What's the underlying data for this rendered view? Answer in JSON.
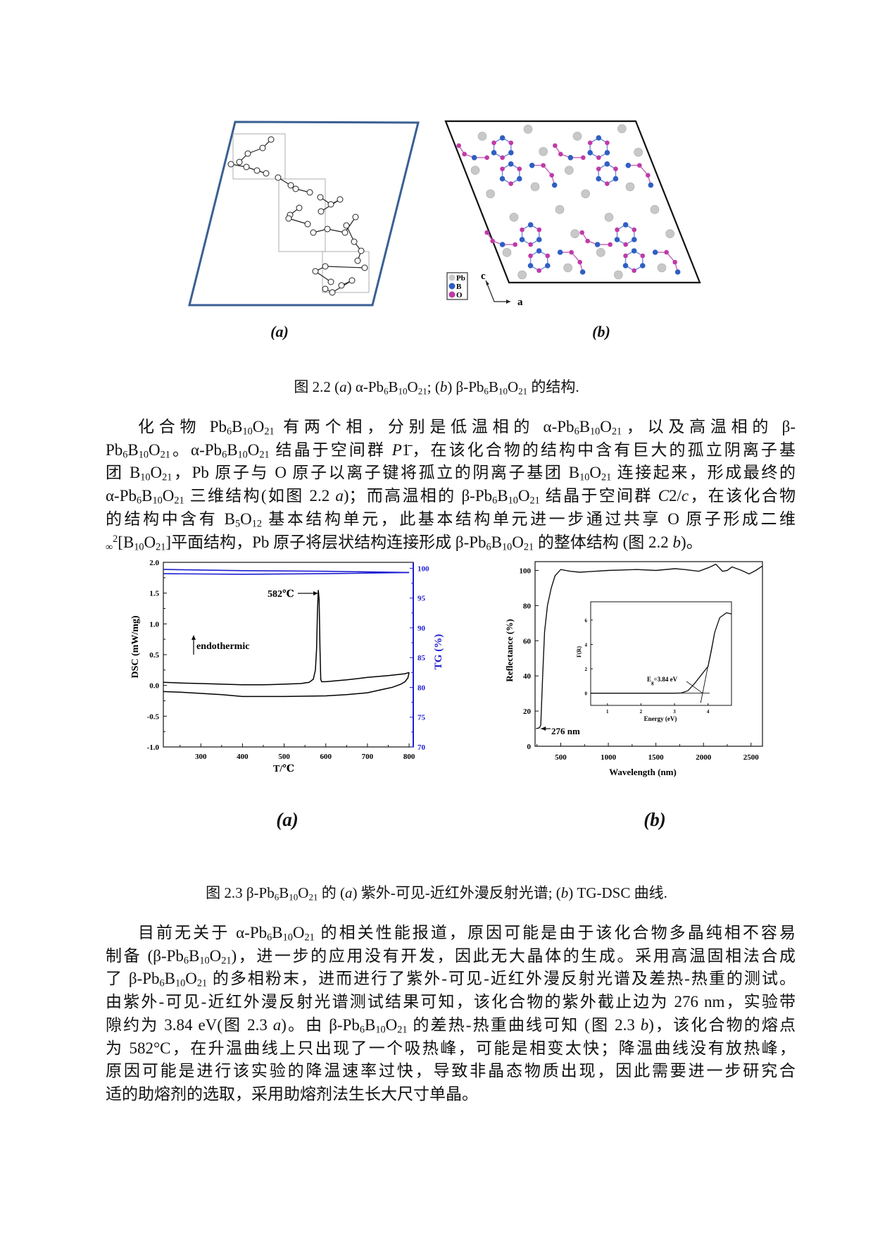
{
  "figure_2_2": {
    "label_a": "(a)",
    "label_b": "(b)",
    "caption": "图 2.2  (*a*) α-Pb_{6}B_{10}O_{21}; (*b*) β-Pb_{6}B_{10}O_{21} 的结构.",
    "legend": [
      "Pb",
      "B",
      "O"
    ],
    "axis_c": "c",
    "axis_a": "a",
    "colors": {
      "frame_a": "#3a5f94",
      "Pb": "#c8c8c8",
      "B": "#2f5fc4",
      "O": "#c03aa8"
    }
  },
  "paragraph_1": [
    "化合物 Pb_{6}B_{10}O_{21} 有两个相，分别是低温相的 α-Pb_{6}B_{10}O_{21}，以及高温相的 β-",
    "Pb_{6}B_{10}O_{21}。α-Pb_{6}B_{10}O_{21} 结晶于空间群 *P*1̄，在该化合物的结构中含有巨大的孤立阴离子基",
    "团 B_{10}O_{21}，Pb 原子与 O 原子以离子键将孤立的阴离子基团 B_{10}O_{21} 连接起来，形成最终的",
    "α-Pb_{6}B_{10}O_{21} 三维结构(如图 2.2 *a*)；而高温相的 β-Pb_{6}B_{10}O_{21} 结晶于空间群 *C*2/*c*，在该化合物",
    "的结构中含有 B_{5}O_{12} 基本结构单元，此基本结构单元进一步通过共享 O 原子形成二维",
    "_{∞}^{2}[B_{10}O_{21}]平面结构，Pb 原子将层状结构连接形成 β-Pb_{6}B_{10}O_{21} 的整体结构 (图 2.2 *b*)。"
  ],
  "figure_2_3": {
    "label_a": "(a)",
    "label_b": "(b)",
    "caption": "图 2.3  β-Pb_{6}B_{10}O_{21} 的  (*a*) 紫外-可见-近红外漫反射光谱; (*b*) TG-DSC 曲线."
  },
  "paragraph_2": [
    "目前无关于 α-Pb_{6}B_{10}O_{21} 的相关性能报道，原因可能是由于该化合物多晶纯相不容易",
    "制备 (β-Pb_{6}B_{10}O_{21})，进一步的应用没有开发，因此无大晶体的生成。采用高温固相法合成",
    "了 β-Pb_{6}B_{10}O_{21} 的多相粉末，进而进行了紫外-可见-近红外漫反射光谱及差热-热重的测试。",
    "由紫外-可见-近红外漫反射光谱测试结果可知，该化合物的紫外截止边为 276 nm，实验带",
    "隙约为 3.84 eV(图 2.3 *a*)。由 β-Pb_{6}B_{10}O_{21} 的差热-热重曲线可知 (图 2.3 *b*)，该化合物的熔点",
    "为 582°C，在升温曲线上只出现了一个吸热峰，可能是相变太快；降温曲线没有放热峰，",
    "原因可能是进行该实验的降温速率过快，导致非晶态物质出现，因此需要进一步研究合",
    "适的助熔剂的选取，采用助熔剂法生长大尺寸单晶。"
  ],
  "chart_data": [
    {
      "type": "line",
      "xlabel": "T/℃",
      "ylabel": "DSC (mW/mg)",
      "y2label": "TG (%)",
      "xlim": [
        210,
        810
      ],
      "ylim": [
        -1.0,
        2.0
      ],
      "y2lim": [
        70,
        101
      ],
      "xticks": [
        "300",
        "400",
        "500",
        "600",
        "700",
        "800"
      ],
      "yticks": [
        "-1.0",
        "-0.5",
        "0.0",
        "0.5",
        "1.0",
        "1.5",
        "2.0"
      ],
      "y2ticks": [
        "70",
        "75",
        "80",
        "85",
        "90",
        "95",
        "100"
      ],
      "grid": false,
      "colors": {
        "dsc": "#000000",
        "tg": "#1e1ed2"
      },
      "annotations": [
        {
          "text": "582℃",
          "x": 582,
          "y": 1.55
        },
        {
          "text": "endothermic"
        }
      ],
      "series": [
        {
          "axis": "left",
          "x": [
            210,
            250,
            300,
            350,
            400,
            450,
            500,
            540,
            560,
            570,
            575,
            578,
            580,
            582,
            584,
            586,
            588,
            590,
            600,
            650,
            700,
            750,
            790,
            800
          ],
          "y": [
            0.05,
            0.04,
            0.03,
            0.02,
            0.01,
            0.01,
            0.02,
            0.03,
            0.05,
            0.1,
            0.25,
            0.6,
            1.2,
            1.55,
            1.4,
            0.6,
            0.1,
            0.06,
            0.06,
            0.09,
            0.13,
            0.16,
            0.19,
            0.21
          ]
        },
        {
          "axis": "left",
          "x": [
            800,
            797,
            790,
            780,
            760,
            740,
            700,
            650,
            600,
            500,
            400,
            350,
            300,
            250,
            210
          ],
          "y": [
            0.21,
            0.12,
            0.06,
            0.02,
            -0.03,
            -0.06,
            -0.12,
            -0.15,
            -0.17,
            -0.18,
            -0.18,
            -0.15,
            -0.13,
            -0.11,
            -0.1
          ]
        },
        {
          "axis": "right",
          "x": [
            210,
            400,
            600,
            800
          ],
          "y": [
            99.8,
            99.6,
            99.5,
            99.3
          ]
        },
        {
          "axis": "right",
          "x": [
            210,
            400,
            600,
            800
          ],
          "y": [
            99.1,
            99.0,
            99.1,
            99.3
          ]
        }
      ]
    },
    {
      "type": "line",
      "xlabel": "Wavelength (nm)",
      "ylabel": "Reflectance (%)",
      "xlim": [
        230,
        2620
      ],
      "ylim": [
        0,
        105
      ],
      "xticks": [
        "500",
        "1000",
        "1500",
        "2000",
        "2500"
      ],
      "yticks": [
        "0",
        "20",
        "40",
        "60",
        "80",
        "100"
      ],
      "grid": false,
      "annotations": [
        {
          "text": "276 nm",
          "x": 276,
          "y": 10
        }
      ],
      "series": [
        {
          "x": [
            240,
            276,
            290,
            310,
            330,
            360,
            400,
            440,
            500,
            600,
            700,
            800,
            1000,
            1300,
            1500,
            1700,
            1800,
            1950,
            2050,
            2130,
            2200,
            2250,
            2300,
            2400,
            2480,
            2550,
            2620
          ],
          "y": [
            10,
            10.5,
            12,
            40,
            65,
            80,
            90,
            97,
            100.5,
            99.5,
            99,
            99.3,
            100,
            100.5,
            100,
            101,
            100.5,
            99.5,
            101.5,
            103.5,
            99.5,
            100,
            102,
            100,
            98,
            100,
            102.5
          ]
        }
      ],
      "inset": {
        "type": "line",
        "xlabel": "Energy (eV)",
        "ylabel": "F(R)",
        "xlim": [
          0.5,
          4.7
        ],
        "ylim": [
          -1,
          7.5
        ],
        "xticks": [
          "1",
          "2",
          "3",
          "4"
        ],
        "yticks": [
          "0",
          "2",
          "4",
          "6"
        ],
        "annotations": [
          {
            "text": "E_{g}=3.84 eV",
            "x": 3.84,
            "y": 0
          }
        ],
        "series": [
          {
            "x": [
              0.5,
              1,
              2,
              3,
              3.2,
              3.4,
              3.6,
              3.8,
              4.0,
              4.1,
              4.2,
              4.35,
              4.55,
              4.7
            ],
            "y": [
              0,
              0,
              0,
              0,
              0.02,
              0.2,
              0.8,
              1.5,
              2.2,
              3.5,
              5,
              6.2,
              6.6,
              6.5
            ]
          },
          {
            "x": [
              0.5,
              4.05
            ],
            "y": [
              0,
              0
            ]
          },
          {
            "x": [
              3.78,
              4.2
            ],
            "y": [
              -0.8,
              5.0
            ]
          }
        ]
      }
    }
  ]
}
